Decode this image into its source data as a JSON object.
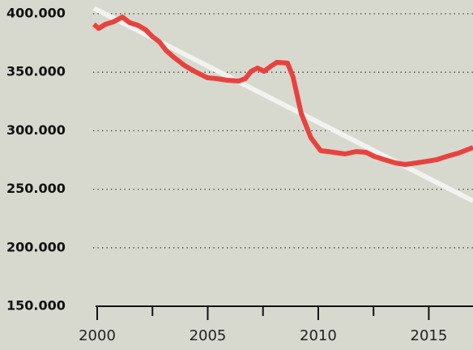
{
  "chart_data": {
    "type": "line",
    "xlim": [
      2000,
      2017
    ],
    "xticks": [
      2000,
      2005,
      2010,
      2015
    ],
    "xminor_ticks": [
      2002.5,
      2007.5,
      2012.5
    ],
    "ylim": [
      150000,
      400000
    ],
    "yticks": [
      {
        "value": 150000,
        "label": "150.000"
      },
      {
        "value": 200000,
        "label": "200.000"
      },
      {
        "value": 250000,
        "label": "250.000"
      },
      {
        "value": 300000,
        "label": "300.000"
      },
      {
        "value": 350000,
        "label": "350.000"
      },
      {
        "value": 400000,
        "label": "400.000"
      }
    ],
    "grid": true,
    "series": [
      {
        "color": "#f2f2ee",
        "x": [
          1999.85,
          2017.0
        ],
        "values": [
          404800,
          240000
        ]
      },
      {
        "color": "#e8423f",
        "x": [
          1999.85,
          2000.07,
          2000.37,
          2000.73,
          2001.14,
          2001.47,
          2001.83,
          2002.2,
          2002.49,
          2002.82,
          2003.11,
          2003.48,
          2003.96,
          2004.4,
          2004.98,
          2005.42,
          2005.86,
          2006.41,
          2006.7,
          2006.96,
          2007.25,
          2007.55,
          2007.84,
          2008.13,
          2008.61,
          2008.86,
          2009.23,
          2009.67,
          2010.11,
          2010.7,
          2011.21,
          2011.72,
          2012.16,
          2012.53,
          2012.97,
          2013.48,
          2013.92,
          2014.47,
          2014.95,
          2015.38,
          2015.82,
          2016.34,
          2017.0
        ],
        "values": [
          391000,
          387500,
          391000,
          393100,
          397200,
          392400,
          390300,
          386200,
          380600,
          375800,
          368800,
          362600,
          355700,
          350800,
          345300,
          344600,
          343200,
          342500,
          344600,
          350800,
          353600,
          350800,
          355000,
          358500,
          357800,
          346000,
          314800,
          294000,
          283000,
          281600,
          280200,
          282300,
          281600,
          278100,
          275400,
          272600,
          271200,
          272600,
          274000,
          275400,
          278100,
          280900,
          285700
        ]
      }
    ]
  }
}
